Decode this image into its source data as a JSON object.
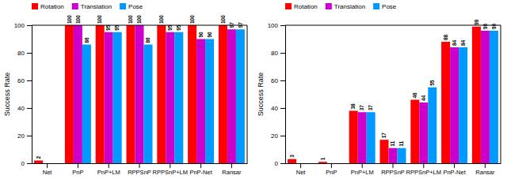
{
  "chart_data": [
    {
      "type": "bar",
      "categories": [
        "Net",
        "PnP",
        "PnP+LM",
        "RPPSnP",
        "RPPSnP+LM",
        "PnP-Net",
        "Ransar"
      ],
      "series": [
        {
          "name": "Rotation",
          "color": "#FF0000",
          "values": [
            2,
            100,
            100,
            100,
            100,
            100,
            100
          ]
        },
        {
          "name": "Translation",
          "color": "#CC00CC",
          "values": [
            0,
            100,
            95,
            100,
            95,
            90,
            97
          ],
          "value_labels": [
            null,
            "100",
            "95",
            "100",
            "95",
            "90",
            "97"
          ]
        },
        {
          "name": "Pose",
          "color": "#0099FF",
          "values": [
            0,
            86,
            95,
            86,
            95,
            90,
            97
          ],
          "value_labels": [
            null,
            "86",
            "95",
            "86",
            "95",
            "90",
            "97"
          ]
        }
      ],
      "ylabel": "Success Rate",
      "ylim": [
        0,
        100
      ],
      "yticks": [
        0,
        20,
        40,
        60,
        80,
        100
      ],
      "grid": false,
      "legend": "upper left",
      "data_labels": true
    },
    {
      "type": "bar",
      "categories": [
        "Net",
        "PnP",
        "PnP+LM",
        "RPPSnP",
        "RPPSnP+LM",
        "PnP-Net",
        "Ransar"
      ],
      "series": [
        {
          "name": "Rotation",
          "color": "#FF0000",
          "values": [
            3,
            1,
            38,
            17,
            46,
            88,
            99
          ]
        },
        {
          "name": "Translation",
          "color": "#CC00CC",
          "values": [
            0,
            0,
            37,
            11,
            44,
            84,
            96
          ],
          "value_labels": [
            null,
            null,
            "37",
            "11",
            "44",
            "84",
            "96"
          ]
        },
        {
          "name": "Pose",
          "color": "#0099FF",
          "values": [
            0,
            0,
            37,
            11,
            55,
            84,
            96
          ],
          "value_labels": [
            null,
            null,
            "37",
            "11",
            "55",
            "84",
            "96"
          ]
        }
      ],
      "ylabel": "Success Rate",
      "ylim": [
        0,
        100
      ],
      "yticks": [
        0,
        20,
        40,
        60,
        80,
        100
      ],
      "grid": false,
      "legend": "upper left",
      "data_labels": true
    }
  ]
}
